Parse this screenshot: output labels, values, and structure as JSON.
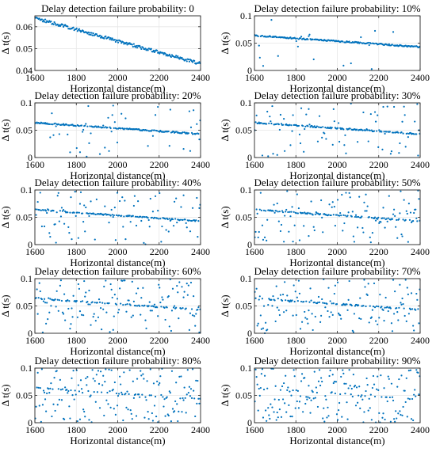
{
  "chart_data": [
    {
      "type": "scatter",
      "title": "Delay detection failure probability: 0",
      "xlabel": "Horizontal distance(m)",
      "ylabel": "Δ t(s)",
      "failure_probability": 0,
      "xlim": [
        1600,
        2400
      ],
      "ylim": [
        0.04,
        0.065
      ],
      "xticks": [
        1600,
        1800,
        2000,
        2200,
        2400
      ],
      "yticks": [
        "0.04",
        "0.05",
        "0.06"
      ],
      "trend": {
        "x": [
          1600,
          2400
        ],
        "y": [
          0.064,
          0.043
        ]
      },
      "grid": true,
      "color": "#0072BD"
    },
    {
      "type": "scatter",
      "title": "Delay detection failure probability: 10%",
      "xlabel": "Horizontal distance(m)",
      "ylabel": "Δ t(s)",
      "failure_probability": 0.1,
      "xlim": [
        1600,
        2400
      ],
      "ylim": [
        0,
        0.1
      ],
      "xticks": [
        1600,
        1800,
        2000,
        2200,
        2400
      ],
      "yticks": [
        "0",
        "0.05",
        "0.1"
      ],
      "trend": {
        "x": [
          1600,
          2400
        ],
        "y": [
          0.064,
          0.043
        ]
      },
      "grid": true,
      "color": "#0072BD"
    },
    {
      "type": "scatter",
      "title": "Delay detection failure probability: 20%",
      "xlabel": "Horizontal distance(m)",
      "ylabel": "Δ t(s)",
      "failure_probability": 0.2,
      "xlim": [
        1600,
        2400
      ],
      "ylim": [
        0,
        0.1
      ],
      "xticks": [
        1600,
        1800,
        2000,
        2200,
        2400
      ],
      "yticks": [
        "0",
        "0.05",
        "0.1"
      ],
      "trend": {
        "x": [
          1600,
          2400
        ],
        "y": [
          0.064,
          0.043
        ]
      },
      "grid": true,
      "color": "#0072BD"
    },
    {
      "type": "scatter",
      "title": "Delay detection failure probability: 30%",
      "xlabel": "Horizontal distance(m)",
      "ylabel": "Δ t(s)",
      "failure_probability": 0.3,
      "xlim": [
        1600,
        2400
      ],
      "ylim": [
        0,
        0.1
      ],
      "xticks": [
        1600,
        1800,
        2000,
        2200,
        2400
      ],
      "yticks": [
        "0",
        "0.05",
        "0.1"
      ],
      "trend": {
        "x": [
          1600,
          2400
        ],
        "y": [
          0.064,
          0.043
        ]
      },
      "grid": true,
      "color": "#0072BD"
    },
    {
      "type": "scatter",
      "title": "Delay detection failure probability: 40%",
      "xlabel": "Horizontal distance(m)",
      "ylabel": "Δ t(s)",
      "failure_probability": 0.4,
      "xlim": [
        1600,
        2400
      ],
      "ylim": [
        0,
        0.1
      ],
      "xticks": [
        1600,
        1800,
        2000,
        2200,
        2400
      ],
      "yticks": [
        "0",
        "0.05",
        "0.1"
      ],
      "trend": {
        "x": [
          1600,
          2400
        ],
        "y": [
          0.064,
          0.043
        ]
      },
      "grid": true,
      "color": "#0072BD"
    },
    {
      "type": "scatter",
      "title": "Delay detection failure probability: 50%",
      "xlabel": "Horizontal distance(m)",
      "ylabel": "Δ t(s)",
      "failure_probability": 0.5,
      "xlim": [
        1600,
        2400
      ],
      "ylim": [
        0,
        0.1
      ],
      "xticks": [
        1600,
        1800,
        2000,
        2200,
        2400
      ],
      "yticks": [
        "0",
        "0.05",
        "0.1"
      ],
      "trend": {
        "x": [
          1600,
          2400
        ],
        "y": [
          0.064,
          0.043
        ]
      },
      "grid": true,
      "color": "#0072BD"
    },
    {
      "type": "scatter",
      "title": "Delay detection failure probability: 60%",
      "xlabel": "Horizontal distance(m)",
      "ylabel": "Δ t(s)",
      "failure_probability": 0.6,
      "xlim": [
        1600,
        2400
      ],
      "ylim": [
        0,
        0.1
      ],
      "xticks": [
        1600,
        1800,
        2000,
        2200,
        2400
      ],
      "yticks": [
        "0",
        "0.05",
        "0.1"
      ],
      "trend": {
        "x": [
          1600,
          2400
        ],
        "y": [
          0.064,
          0.043
        ]
      },
      "grid": true,
      "color": "#0072BD"
    },
    {
      "type": "scatter",
      "title": "Delay detection failure probability: 70%",
      "xlabel": "Horizontal distance(m)",
      "ylabel": "Δ t(s)",
      "failure_probability": 0.7,
      "xlim": [
        1600,
        2400
      ],
      "ylim": [
        0,
        0.1
      ],
      "xticks": [
        1600,
        1800,
        2000,
        2200,
        2400
      ],
      "yticks": [
        "0",
        "0.05",
        "0.1"
      ],
      "trend": {
        "x": [
          1600,
          2400
        ],
        "y": [
          0.064,
          0.043
        ]
      },
      "grid": true,
      "color": "#0072BD"
    },
    {
      "type": "scatter",
      "title": "Delay detection failure probability: 80%",
      "xlabel": "Horizontal distance(m)",
      "ylabel": "Δ t(s)",
      "failure_probability": 0.8,
      "xlim": [
        1600,
        2400
      ],
      "ylim": [
        0,
        0.1
      ],
      "xticks": [
        1600,
        1800,
        2000,
        2200,
        2400
      ],
      "yticks": [
        "0",
        "0.05",
        "0.1"
      ],
      "trend": {
        "x": [
          1600,
          2400
        ],
        "y": [
          0.064,
          0.043
        ]
      },
      "grid": true,
      "color": "#0072BD"
    },
    {
      "type": "scatter",
      "title": "Delay detection failure probability: 90%",
      "xlabel": "Horizontal distance(m)",
      "ylabel": "Δ t(s)",
      "failure_probability": 0.9,
      "xlim": [
        1600,
        2400
      ],
      "ylim": [
        0,
        0.1
      ],
      "xticks": [
        1600,
        1800,
        2000,
        2200,
        2400
      ],
      "yticks": [
        "0",
        "0.05",
        "0.1"
      ],
      "trend": {
        "x": [
          1600,
          2400
        ],
        "y": [
          0.064,
          0.043
        ]
      },
      "grid": true,
      "color": "#0072BD"
    }
  ]
}
